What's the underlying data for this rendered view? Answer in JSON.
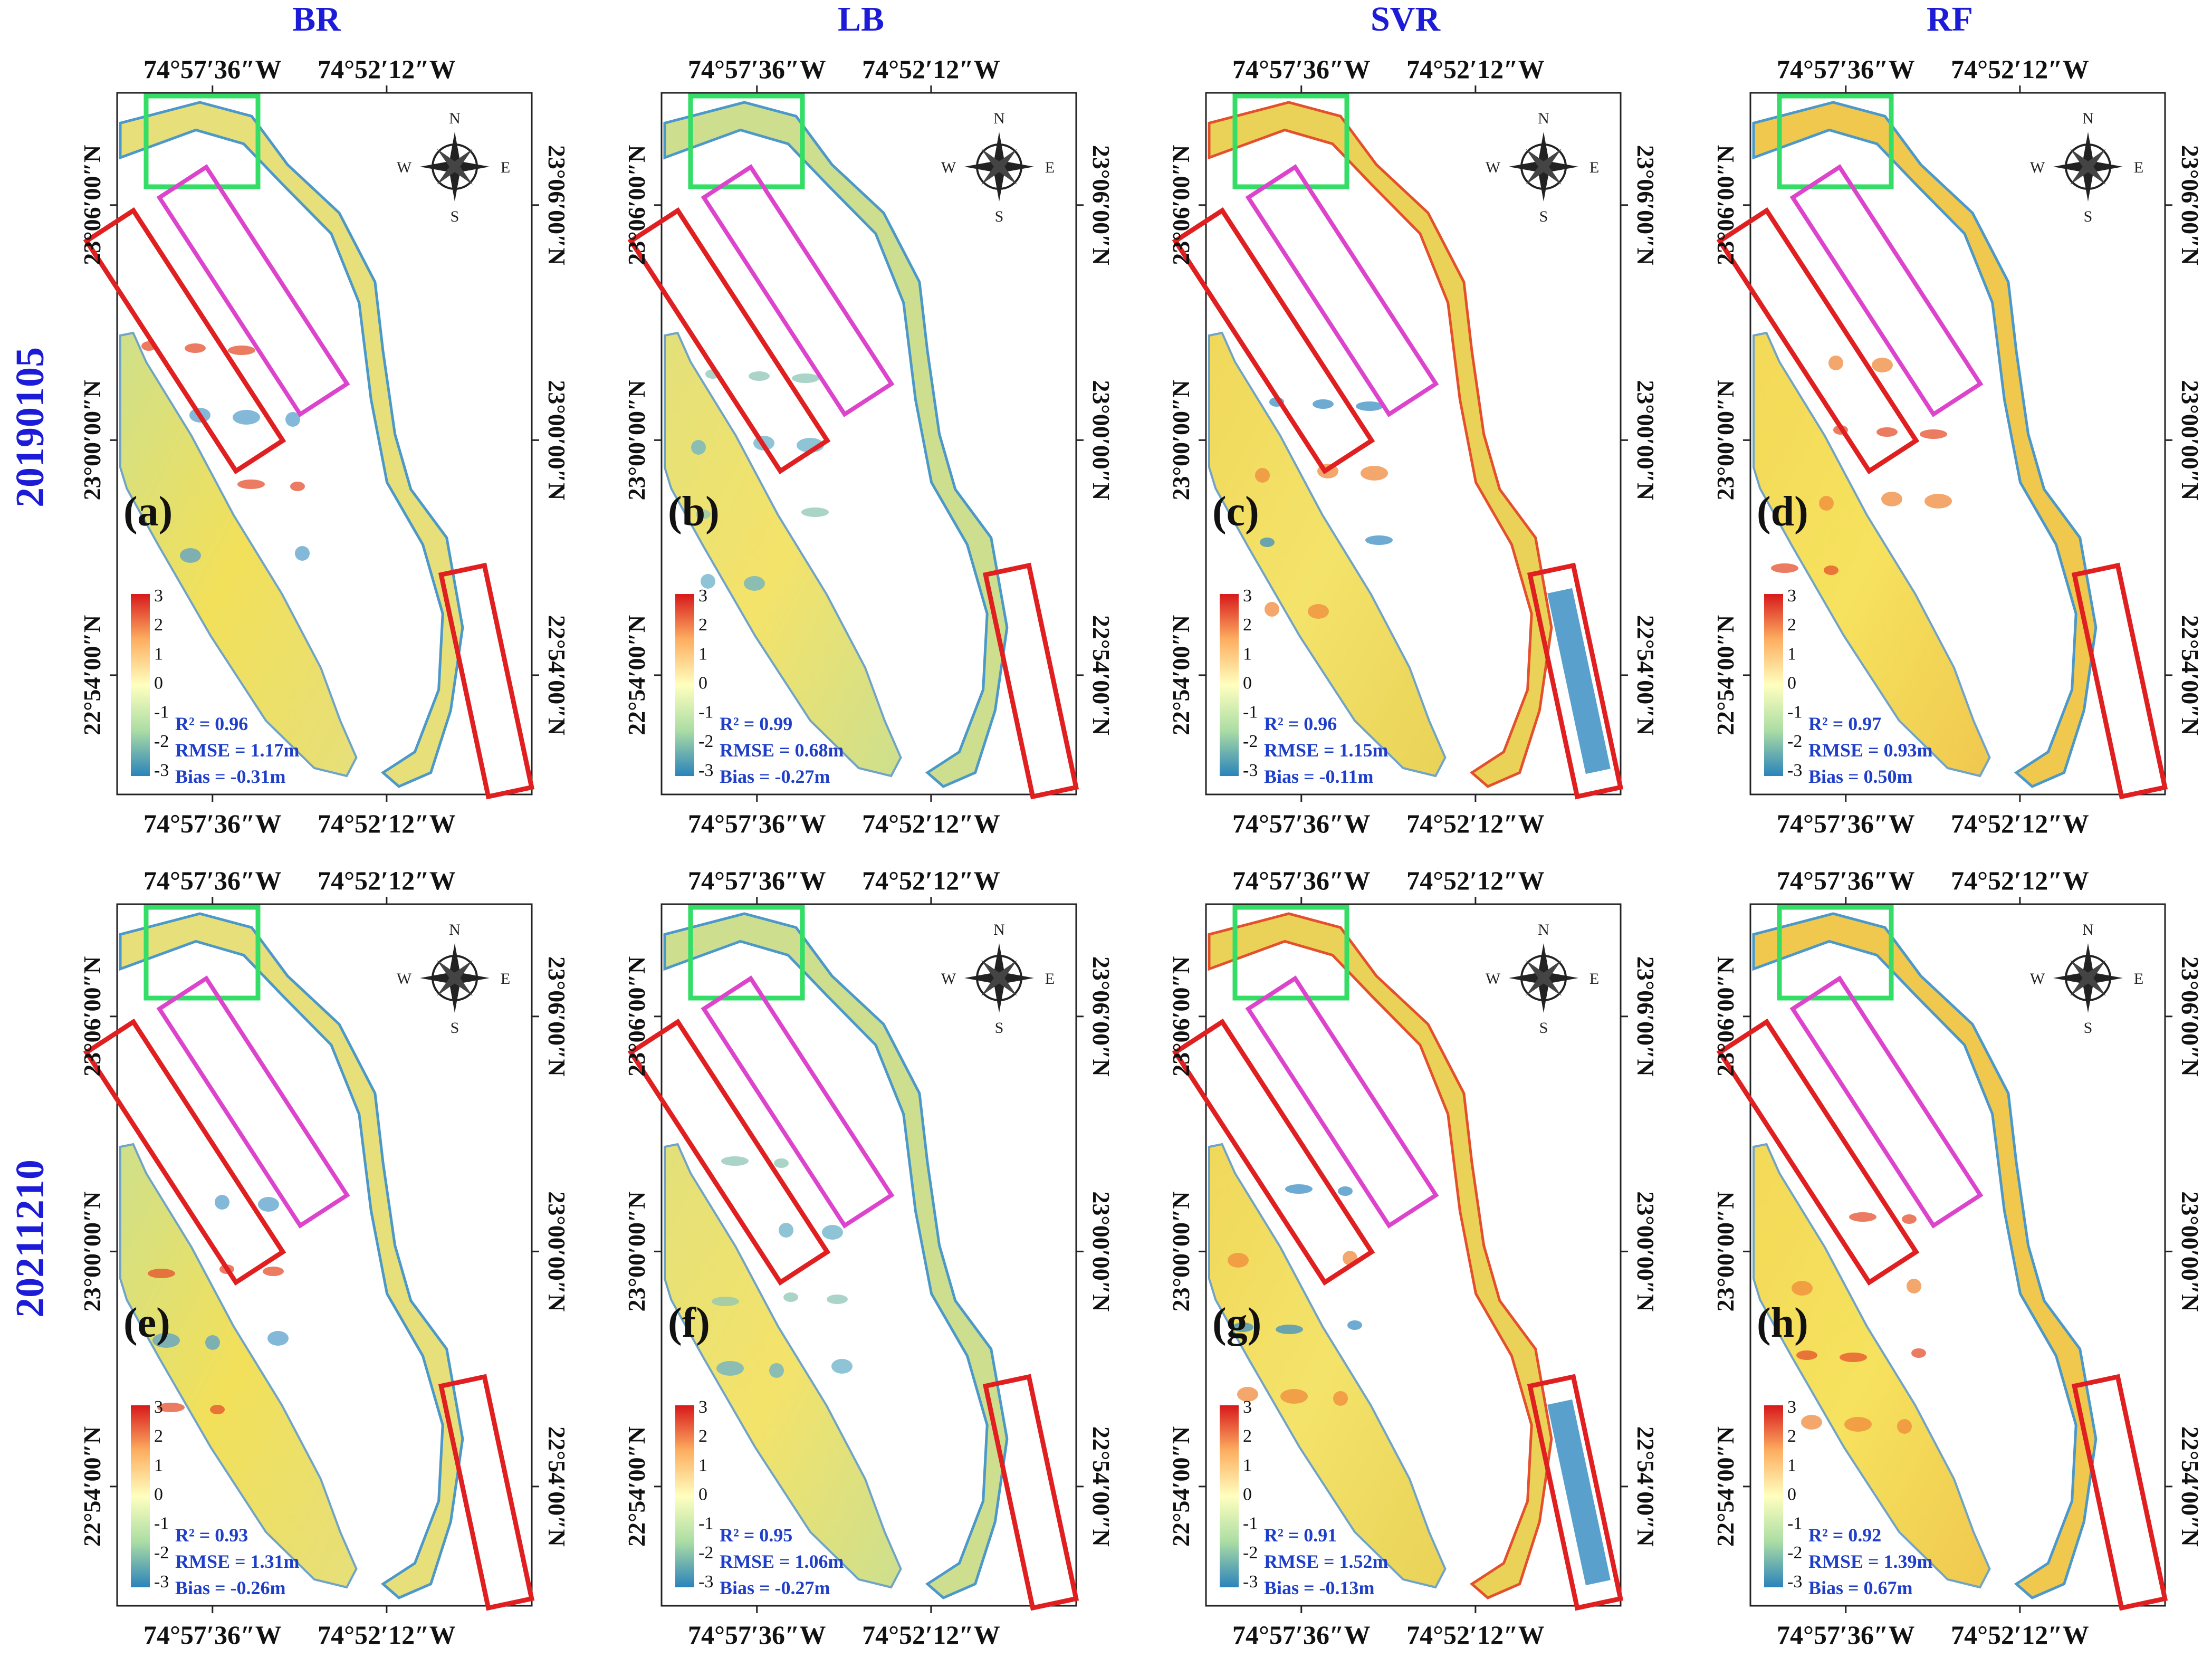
{
  "figure": {
    "column_titles": [
      "BR",
      "LB",
      "SVR",
      "RF"
    ],
    "row_labels": [
      "20190105",
      "20211210"
    ],
    "lon_labels": [
      "74°57′36″W",
      "74°52′12″W"
    ],
    "lat_labels": [
      "23°06′00″N",
      "23°00′00″N",
      "22°54′00″N"
    ],
    "compass": {
      "north": "N",
      "south": "S",
      "east": "E",
      "west": "W"
    },
    "colorbar_ticks": [
      "3",
      "2",
      "1",
      "0",
      "-1",
      "-2",
      "-3"
    ],
    "colors": {
      "title_blue": "#1c1cd8",
      "stats_blue": "#1f3fc8",
      "green_box": "#33dd66",
      "red_box": "#e02020",
      "magenta_box": "#dd44cc",
      "colormap": [
        "#2b83ba",
        "#abdda4",
        "#ffffbf",
        "#fdae61",
        "#d7191c"
      ]
    }
  },
  "panels": [
    {
      "id": "a",
      "label": "(a)",
      "method": "BR",
      "date": "20190105",
      "r2": "R² = 0.96",
      "rmse": "RMSE = 1.17m",
      "bias": "Bias = -0.31m",
      "tone": "mixed-red"
    },
    {
      "id": "b",
      "label": "(b)",
      "method": "LB",
      "date": "20190105",
      "r2": "R² = 0.99",
      "rmse": "RMSE = 0.68m",
      "bias": "Bias = -0.27m",
      "tone": "yellow-cool"
    },
    {
      "id": "c",
      "label": "(c)",
      "method": "SVR",
      "date": "20190105",
      "r2": "R² = 0.96",
      "rmse": "RMSE = 1.15m",
      "bias": "Bias = -0.11m",
      "tone": "blue-east"
    },
    {
      "id": "d",
      "label": "(d)",
      "method": "RF",
      "date": "20190105",
      "r2": "R² = 0.97",
      "rmse": "RMSE = 0.93m",
      "bias": "Bias = 0.50m",
      "tone": "warm"
    },
    {
      "id": "e",
      "label": "(e)",
      "method": "BR",
      "date": "20211210",
      "r2": "R² = 0.93",
      "rmse": "RMSE = 1.31m",
      "bias": "Bias = -0.26m",
      "tone": "mixed-red"
    },
    {
      "id": "f",
      "label": "(f)",
      "method": "LB",
      "date": "20211210",
      "r2": "R² = 0.95",
      "rmse": "RMSE = 1.06m",
      "bias": "Bias = -0.27m",
      "tone": "yellow-cool"
    },
    {
      "id": "g",
      "label": "(g)",
      "method": "SVR",
      "date": "20211210",
      "r2": "R² = 0.91",
      "rmse": "RMSE = 1.52m",
      "bias": "Bias = -0.13m",
      "tone": "blue-east"
    },
    {
      "id": "h",
      "label": "(h)",
      "method": "RF",
      "date": "20211210",
      "r2": "R² = 0.92",
      "rmse": "RMSE = 1.39m",
      "bias": "Bias = 0.67m",
      "tone": "warm"
    }
  ]
}
